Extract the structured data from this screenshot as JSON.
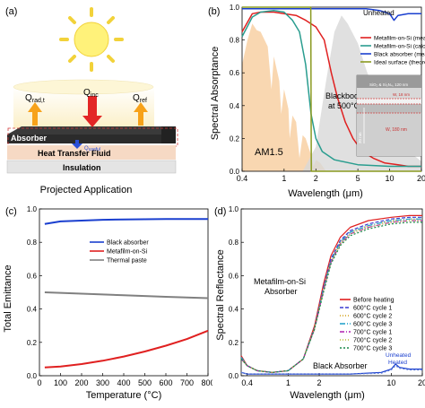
{
  "panel_a": {
    "label": "(a)",
    "q_rad": "Q",
    "q_rad_sub": "rad,t",
    "q_inc": "Q",
    "q_inc_sub": "inc",
    "q_ref": "Q",
    "q_ref_sub": "ref",
    "q_useful": "Q",
    "q_useful_sub": "useful",
    "absorber": "Absorber",
    "htf": "Heat Transfer Fluid",
    "insulation": "Insulation",
    "caption": "Projected Application",
    "colors": {
      "sun": "#fff27a",
      "incident": "#e32626",
      "emitted": "#f7a21a",
      "useful": "#2a4fd8"
    }
  },
  "panel_b": {
    "label": "(b)",
    "ylabel": "Spectral Absorptance",
    "xlabel": "Wavelength (μm)",
    "annotation_unheated": "Unheated",
    "annotation_am": "AM1.5",
    "annotation_bb1": "Blackbody",
    "annotation_bb2": "at 500°C",
    "inset": {
      "layer1": "SiO₂ & Si₃N₄, 120 nm",
      "layer2": "W, 18 nm",
      "layer3": "W, 180 nm",
      "side": "30 nm"
    },
    "chart_data": {
      "type": "line",
      "xscale": "log",
      "xlim": [
        0.4,
        20
      ],
      "ylim": [
        0,
        1
      ],
      "xticks": [
        {
          "v": 0.4,
          "t": "0.4"
        },
        {
          "v": 1,
          "t": "1"
        },
        {
          "v": 2,
          "t": "2"
        },
        {
          "v": 5,
          "t": "5"
        },
        {
          "v": 10,
          "t": "10"
        },
        {
          "v": 20,
          "t": "20"
        }
      ],
      "yticks": [
        {
          "v": 0,
          "t": "0.0"
        },
        {
          "v": 0.2,
          "t": "0.2"
        },
        {
          "v": 0.4,
          "t": "0.4"
        },
        {
          "v": 0.6,
          "t": "0.6"
        },
        {
          "v": 0.8,
          "t": "0.8"
        },
        {
          "v": 1.0,
          "t": "1.0"
        }
      ],
      "series": [
        {
          "name": "Metafilm-on-Si (measured)",
          "color": "#e02020",
          "x": [
            0.4,
            0.5,
            0.6,
            0.8,
            1.0,
            1.3,
            1.6,
            2.0,
            2.4,
            2.8,
            3.2,
            3.8,
            4.5,
            5.5,
            7,
            9,
            12,
            15,
            20
          ],
          "y": [
            0.85,
            0.96,
            0.97,
            0.97,
            0.96,
            0.95,
            0.92,
            0.88,
            0.8,
            0.6,
            0.45,
            0.3,
            0.2,
            0.12,
            0.08,
            0.05,
            0.04,
            0.03,
            0.03
          ]
        },
        {
          "name": "Metafilm-on-Si (calculated)",
          "color": "#2a9d8f",
          "x": [
            0.4,
            0.5,
            0.6,
            0.8,
            1.0,
            1.2,
            1.4,
            1.6,
            1.8,
            2.0,
            2.3,
            3,
            5,
            10,
            20
          ],
          "y": [
            0.82,
            0.94,
            0.97,
            0.98,
            0.97,
            0.92,
            0.85,
            0.65,
            0.35,
            0.2,
            0.12,
            0.07,
            0.04,
            0.03,
            0.03
          ]
        },
        {
          "name": "Black absorber (measured)",
          "color": "#1a3fcf",
          "x": [
            0.4,
            0.6,
            1,
            2,
            4,
            6,
            8,
            10,
            11,
            12,
            15,
            20
          ],
          "y": [
            0.99,
            0.99,
            0.99,
            0.99,
            0.99,
            0.99,
            0.98,
            0.96,
            0.92,
            0.95,
            0.96,
            0.96
          ]
        },
        {
          "name": "Ideal surface (theoretical)",
          "color": "#8a9a20",
          "x": [
            0.4,
            1.79,
            1.81,
            20
          ],
          "y": [
            1.0,
            1.0,
            0.0,
            0.0
          ]
        }
      ]
    }
  },
  "panel_c": {
    "label": "(c)",
    "ylabel": "Total Emittance",
    "xlabel": "Temperature (°C)",
    "chart_data": {
      "type": "line",
      "xlim": [
        0,
        800
      ],
      "ylim": [
        0,
        1
      ],
      "xticks": [
        {
          "v": 0,
          "t": "0"
        },
        {
          "v": 100,
          "t": "100"
        },
        {
          "v": 200,
          "t": "200"
        },
        {
          "v": 300,
          "t": "300"
        },
        {
          "v": 400,
          "t": "400"
        },
        {
          "v": 500,
          "t": "500"
        },
        {
          "v": 600,
          "t": "600"
        },
        {
          "v": 700,
          "t": "700"
        },
        {
          "v": 800,
          "t": "800"
        }
      ],
      "yticks": [
        {
          "v": 0,
          "t": "0.0"
        },
        {
          "v": 0.2,
          "t": "0.2"
        },
        {
          "v": 0.4,
          "t": "0.4"
        },
        {
          "v": 0.6,
          "t": "0.6"
        },
        {
          "v": 0.8,
          "t": "0.8"
        },
        {
          "v": 1.0,
          "t": "1.0"
        }
      ],
      "series": [
        {
          "name": "Black absorber",
          "color": "#1a3fcf",
          "x": [
            25,
            100,
            200,
            300,
            400,
            500,
            600,
            700,
            800
          ],
          "y": [
            0.91,
            0.925,
            0.93,
            0.935,
            0.937,
            0.938,
            0.94,
            0.94,
            0.94
          ]
        },
        {
          "name": "Metafilm-on-Si",
          "color": "#e02020",
          "x": [
            25,
            100,
            200,
            300,
            400,
            500,
            600,
            700,
            800
          ],
          "y": [
            0.05,
            0.055,
            0.07,
            0.09,
            0.115,
            0.145,
            0.18,
            0.22,
            0.27
          ]
        },
        {
          "name": "Thermal paste",
          "color": "#808080",
          "x": [
            25,
            100,
            200,
            300,
            400,
            500,
            600,
            700,
            800
          ],
          "y": [
            0.5,
            0.497,
            0.492,
            0.487,
            0.482,
            0.478,
            0.473,
            0.469,
            0.465
          ]
        }
      ]
    }
  },
  "panel_d": {
    "label": "(d)",
    "ylabel": "Spectral Reflectance",
    "xlabel": "Wavelength (μm)",
    "annotation_meta1": "Metafilm-on-Si",
    "annotation_meta2": "Absorber",
    "annotation_black": "Black Absorber",
    "annotation_unheated": "Unheated",
    "annotation_heated": "Heated",
    "chart_data": {
      "type": "line",
      "xscale": "log",
      "xlim": [
        0.35,
        20
      ],
      "ylim": [
        0,
        1
      ],
      "xticks": [
        {
          "v": 0.4,
          "t": "0.4"
        },
        {
          "v": 1,
          "t": "1"
        },
        {
          "v": 2,
          "t": "2"
        },
        {
          "v": 10,
          "t": "10"
        },
        {
          "v": 20,
          "t": "20"
        }
      ],
      "yticks": [
        {
          "v": 0,
          "t": "0.0"
        },
        {
          "v": 0.2,
          "t": "0.2"
        },
        {
          "v": 0.4,
          "t": "0.4"
        },
        {
          "v": 0.6,
          "t": "0.6"
        },
        {
          "v": 0.8,
          "t": "0.8"
        },
        {
          "v": 1.0,
          "t": "1.0"
        }
      ],
      "series": [
        {
          "name": "Before heating",
          "color": "#e02020",
          "dash": "",
          "x": [
            0.35,
            0.4,
            0.5,
            0.7,
            1.0,
            1.4,
            1.8,
            2.2,
            2.6,
            3.2,
            4,
            6,
            10,
            15,
            20
          ],
          "y": [
            0.12,
            0.06,
            0.03,
            0.02,
            0.03,
            0.1,
            0.3,
            0.55,
            0.72,
            0.83,
            0.89,
            0.93,
            0.95,
            0.96,
            0.96
          ]
        },
        {
          "name": "600°C cycle 1",
          "color": "#3a3ad0",
          "dash": "4,2",
          "x": [
            0.35,
            0.4,
            0.5,
            0.7,
            1.0,
            1.4,
            1.8,
            2.2,
            2.6,
            3.2,
            4,
            6,
            10,
            15,
            20
          ],
          "y": [
            0.11,
            0.06,
            0.03,
            0.02,
            0.03,
            0.1,
            0.29,
            0.53,
            0.7,
            0.81,
            0.87,
            0.91,
            0.94,
            0.95,
            0.95
          ]
        },
        {
          "name": "600°C cycle 2",
          "color": "#d4a017",
          "dash": "1,2",
          "x": [
            0.35,
            0.4,
            0.5,
            0.7,
            1.0,
            1.4,
            1.8,
            2.2,
            2.6,
            3.2,
            4,
            6,
            10,
            15,
            20
          ],
          "y": [
            0.11,
            0.06,
            0.03,
            0.02,
            0.03,
            0.1,
            0.29,
            0.52,
            0.69,
            0.8,
            0.86,
            0.9,
            0.93,
            0.94,
            0.94
          ]
        },
        {
          "name": "600°C cycle 3",
          "color": "#1a9dc8",
          "dash": "6,2,1,2",
          "x": [
            0.35,
            0.4,
            0.5,
            0.7,
            1.0,
            1.4,
            1.8,
            2.2,
            2.6,
            3.2,
            4,
            6,
            10,
            15,
            20
          ],
          "y": [
            0.11,
            0.06,
            0.03,
            0.02,
            0.03,
            0.1,
            0.28,
            0.52,
            0.69,
            0.8,
            0.86,
            0.9,
            0.93,
            0.94,
            0.94
          ]
        },
        {
          "name": "700°C cycle 1",
          "color": "#b020b0",
          "dash": "5,2,1,2",
          "x": [
            0.35,
            0.4,
            0.5,
            0.7,
            1.0,
            1.4,
            1.8,
            2.2,
            2.6,
            3.2,
            4,
            6,
            10,
            15,
            20
          ],
          "y": [
            0.1,
            0.06,
            0.03,
            0.02,
            0.03,
            0.1,
            0.28,
            0.51,
            0.68,
            0.79,
            0.85,
            0.89,
            0.92,
            0.93,
            0.93
          ]
        },
        {
          "name": "700°C cycle 2",
          "color": "#b8b830",
          "dash": "1,2",
          "x": [
            0.35,
            0.4,
            0.5,
            0.7,
            1.0,
            1.4,
            1.8,
            2.2,
            2.6,
            3.2,
            4,
            6,
            10,
            15,
            20
          ],
          "y": [
            0.1,
            0.06,
            0.03,
            0.02,
            0.03,
            0.1,
            0.28,
            0.51,
            0.68,
            0.79,
            0.85,
            0.89,
            0.92,
            0.93,
            0.93
          ]
        },
        {
          "name": "700°C cycle 3",
          "color": "#1a8a4a",
          "dash": "2,2",
          "x": [
            0.35,
            0.4,
            0.5,
            0.7,
            1.0,
            1.4,
            1.8,
            2.2,
            2.6,
            3.2,
            4,
            6,
            10,
            15,
            20
          ],
          "y": [
            0.1,
            0.06,
            0.03,
            0.02,
            0.03,
            0.1,
            0.28,
            0.5,
            0.67,
            0.78,
            0.84,
            0.88,
            0.91,
            0.92,
            0.92
          ]
        },
        {
          "name": "",
          "color": "#1a3fcf",
          "dash": "",
          "x": [
            0.35,
            0.4,
            0.6,
            1,
            2,
            4,
            8,
            10,
            11,
            12,
            15,
            20
          ],
          "y": [
            0.02,
            0.01,
            0.01,
            0.01,
            0.01,
            0.01,
            0.02,
            0.04,
            0.07,
            0.05,
            0.04,
            0.04
          ]
        },
        {
          "name": "",
          "color": "#5a7ad8",
          "dash": "2,2",
          "x": [
            0.35,
            0.4,
            0.6,
            1,
            2,
            4,
            8,
            10,
            11,
            12,
            15,
            20
          ],
          "y": [
            0.02,
            0.01,
            0.01,
            0.01,
            0.01,
            0.01,
            0.015,
            0.035,
            0.06,
            0.045,
            0.035,
            0.035
          ]
        }
      ]
    }
  }
}
